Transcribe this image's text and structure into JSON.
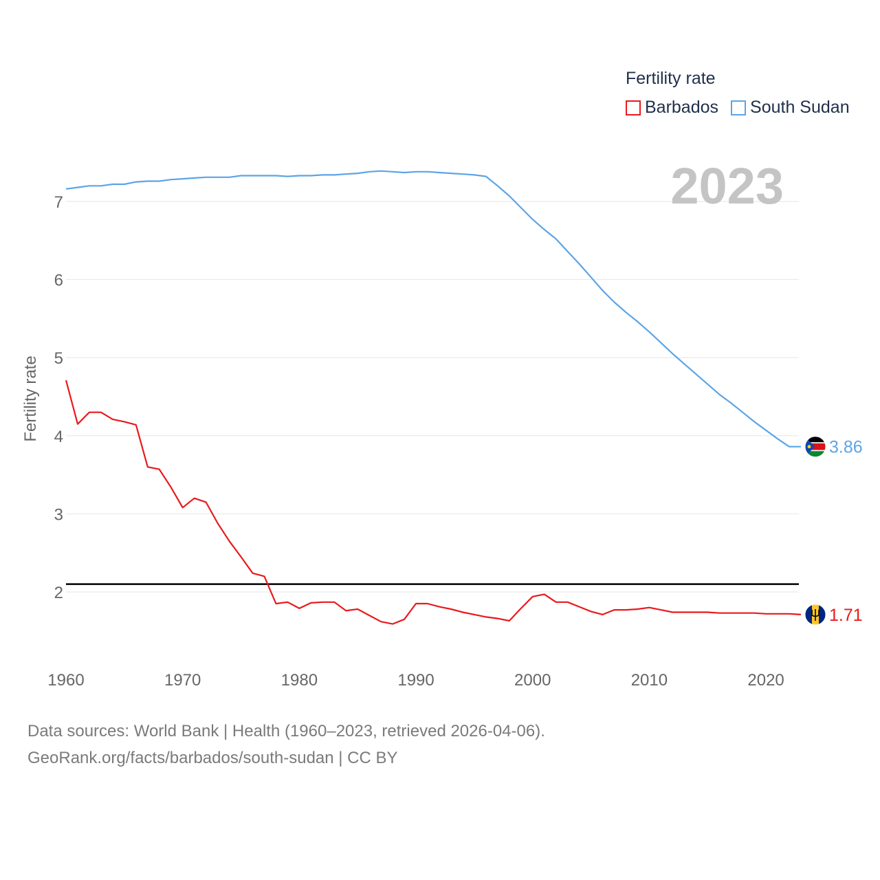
{
  "legend": {
    "title": "Fertility rate",
    "items": [
      {
        "label": "Barbados",
        "color": "#e8191c"
      },
      {
        "label": "South Sudan",
        "color": "#5ba4e6"
      }
    ]
  },
  "year_overlay": "2023",
  "source": {
    "line1": "Data sources: World Bank | Health (1960–2023, retrieved 2026-04-06).",
    "line2": "GeoRank.org/facts/barbados/south-sudan | CC BY"
  },
  "chart_data": {
    "type": "line",
    "title": "",
    "xlabel": "",
    "ylabel": "Fertility rate",
    "xlim": [
      1960,
      2023
    ],
    "ylim": [
      1.2,
      7.5
    ],
    "x_ticks": [
      1960,
      1970,
      1980,
      1990,
      2000,
      2010,
      2020
    ],
    "y_ticks": [
      2,
      3,
      4,
      5,
      6,
      7
    ],
    "grid": true,
    "reference_line": {
      "y": 2.1,
      "color": "#000000"
    },
    "x": [
      1960,
      1961,
      1962,
      1963,
      1964,
      1965,
      1966,
      1967,
      1968,
      1969,
      1970,
      1971,
      1972,
      1973,
      1974,
      1975,
      1976,
      1977,
      1978,
      1979,
      1980,
      1981,
      1982,
      1983,
      1984,
      1985,
      1986,
      1987,
      1988,
      1989,
      1990,
      1991,
      1992,
      1993,
      1994,
      1995,
      1996,
      1997,
      1998,
      1999,
      2000,
      2001,
      2002,
      2003,
      2004,
      2005,
      2006,
      2007,
      2008,
      2009,
      2010,
      2011,
      2012,
      2013,
      2014,
      2015,
      2016,
      2017,
      2018,
      2019,
      2020,
      2021,
      2022,
      2023
    ],
    "series": [
      {
        "name": "Barbados",
        "color": "#e8191c",
        "end_label": "1.71",
        "values": [
          4.71,
          4.15,
          4.3,
          4.3,
          4.21,
          4.18,
          4.14,
          3.6,
          3.57,
          3.34,
          3.08,
          3.2,
          3.15,
          2.88,
          2.65,
          2.45,
          2.24,
          2.2,
          1.85,
          1.87,
          1.79,
          1.86,
          1.87,
          1.87,
          1.76,
          1.78,
          1.7,
          1.62,
          1.59,
          1.65,
          1.85,
          1.85,
          1.81,
          1.78,
          1.74,
          1.71,
          1.68,
          1.66,
          1.63,
          1.79,
          1.94,
          1.97,
          1.87,
          1.87,
          1.81,
          1.75,
          1.71,
          1.77,
          1.77,
          1.78,
          1.8,
          1.77,
          1.74,
          1.74,
          1.74,
          1.74,
          1.73,
          1.73,
          1.73,
          1.73,
          1.72,
          1.72,
          1.72,
          1.71
        ]
      },
      {
        "name": "South Sudan",
        "color": "#5ba4e6",
        "end_label": "3.86",
        "values": [
          7.16,
          7.18,
          7.2,
          7.2,
          7.22,
          7.22,
          7.25,
          7.26,
          7.26,
          7.28,
          7.29,
          7.3,
          7.31,
          7.31,
          7.31,
          7.33,
          7.33,
          7.33,
          7.33,
          7.32,
          7.33,
          7.33,
          7.34,
          7.34,
          7.35,
          7.36,
          7.38,
          7.39,
          7.38,
          7.37,
          7.38,
          7.38,
          7.37,
          7.36,
          7.35,
          7.34,
          7.32,
          7.2,
          7.07,
          6.92,
          6.77,
          6.64,
          6.52,
          6.36,
          6.2,
          6.03,
          5.86,
          5.71,
          5.58,
          5.46,
          5.33,
          5.19,
          5.05,
          4.92,
          4.79,
          4.66,
          4.53,
          4.42,
          4.3,
          4.18,
          4.07,
          3.96,
          3.86,
          3.86
        ]
      }
    ]
  }
}
